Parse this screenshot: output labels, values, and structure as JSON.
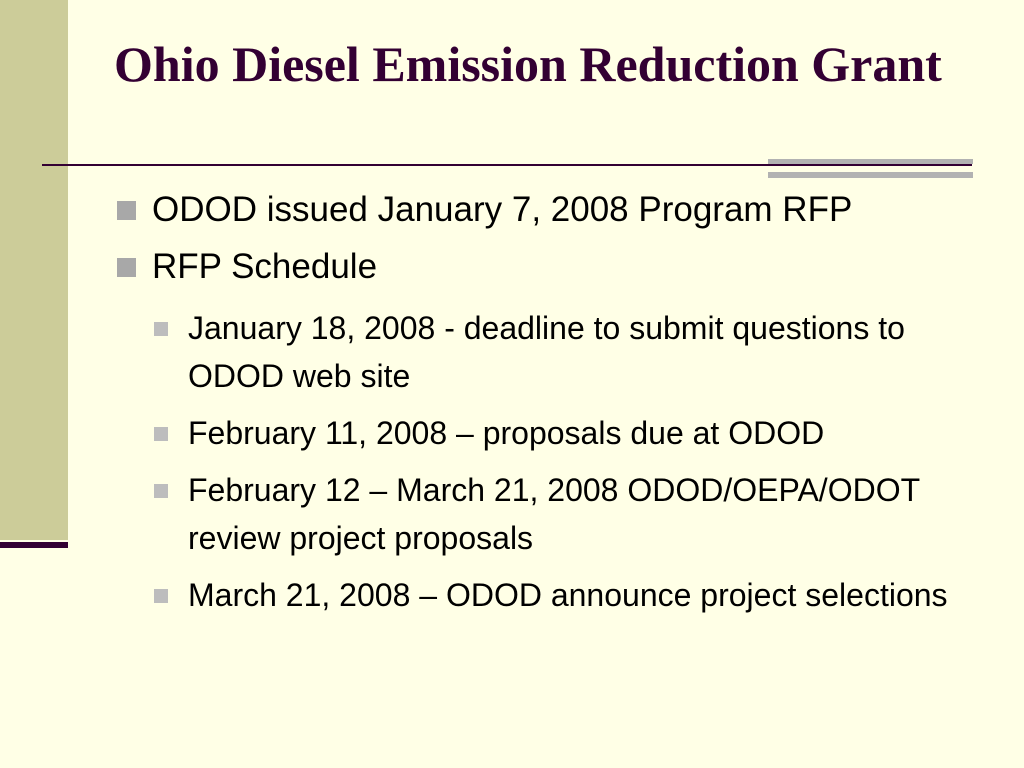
{
  "slide": {
    "title": "Ohio Diesel Emission Reduction Grant",
    "bullets": [
      {
        "text": "ODOD issued January 7, 2008 Program RFP"
      },
      {
        "text": "RFP Schedule"
      }
    ],
    "schedule": [
      {
        "text": "January 18, 2008 - deadline to submit questions to ODOD web site"
      },
      {
        "text": "February 11, 2008 – proposals due at ODOD"
      },
      {
        "text": "February 12 – March 21, 2008 ODOD/OEPA/ODOT review project proposals"
      },
      {
        "text": "March 21, 2008 – ODOD announce project selections"
      }
    ]
  },
  "colors": {
    "background": "#FFFFE6",
    "side_band": "#CCCC99",
    "title": "#330033",
    "accent_rule": "#330033",
    "grey_bar": "#B2B2B2",
    "bullet_level1": "#A8A8A8",
    "bullet_level2": "#BDBDBD"
  }
}
